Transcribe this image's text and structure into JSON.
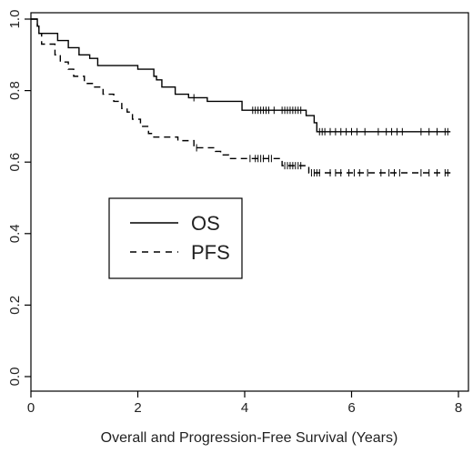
{
  "chart_data": {
    "type": "line",
    "xlabel": "Overall and Progression-Free Survival (Years)",
    "ylabel": "",
    "xlim": [
      0,
      8
    ],
    "ylim": [
      0,
      1
    ],
    "x_ticks": [
      "0",
      "2",
      "4",
      "6",
      "8"
    ],
    "x_tick_values": [
      0,
      2,
      4,
      6,
      8
    ],
    "y_ticks": [
      "0.0",
      "0.2",
      "0.4",
      "0.6",
      "0.8",
      "1.0"
    ],
    "y_tick_values": [
      0,
      0.2,
      0.4,
      0.6,
      0.8,
      1.0
    ],
    "grid": false,
    "legend_position": "middle-left",
    "series": [
      {
        "name": "OS",
        "line_style": "solid",
        "color": "#000000",
        "steps": [
          [
            0.0,
            1.0
          ],
          [
            0.12,
            0.98
          ],
          [
            0.15,
            0.96
          ],
          [
            0.5,
            0.94
          ],
          [
            0.7,
            0.92
          ],
          [
            0.9,
            0.9
          ],
          [
            1.1,
            0.89
          ],
          [
            1.25,
            0.87
          ],
          [
            2.0,
            0.86
          ],
          [
            2.3,
            0.84
          ],
          [
            2.35,
            0.83
          ],
          [
            2.45,
            0.81
          ],
          [
            2.7,
            0.79
          ],
          [
            2.95,
            0.78
          ],
          [
            3.3,
            0.77
          ],
          [
            3.95,
            0.745
          ],
          [
            5.15,
            0.73
          ],
          [
            5.3,
            0.71
          ],
          [
            5.35,
            0.685
          ],
          [
            7.85,
            0.685
          ]
        ],
        "censored": [
          3.05,
          4.15,
          4.2,
          4.25,
          4.3,
          4.35,
          4.4,
          4.45,
          4.55,
          4.7,
          4.75,
          4.8,
          4.85,
          4.9,
          4.95,
          5.0,
          5.05,
          5.4,
          5.45,
          5.5,
          5.6,
          5.7,
          5.8,
          5.9,
          6.0,
          6.1,
          6.25,
          6.5,
          6.65,
          6.75,
          6.85,
          6.95,
          7.3,
          7.45,
          7.6,
          7.75,
          7.8
        ]
      },
      {
        "name": "PFS",
        "line_style": "dashed",
        "color": "#000000",
        "steps": [
          [
            0.0,
            1.0
          ],
          [
            0.12,
            0.98
          ],
          [
            0.15,
            0.96
          ],
          [
            0.2,
            0.93
          ],
          [
            0.45,
            0.9
          ],
          [
            0.55,
            0.88
          ],
          [
            0.7,
            0.86
          ],
          [
            0.8,
            0.84
          ],
          [
            1.0,
            0.82
          ],
          [
            1.15,
            0.81
          ],
          [
            1.35,
            0.79
          ],
          [
            1.55,
            0.77
          ],
          [
            1.7,
            0.75
          ],
          [
            1.8,
            0.74
          ],
          [
            1.9,
            0.72
          ],
          [
            2.05,
            0.7
          ],
          [
            2.2,
            0.68
          ],
          [
            2.3,
            0.67
          ],
          [
            2.75,
            0.66
          ],
          [
            3.05,
            0.64
          ],
          [
            3.45,
            0.63
          ],
          [
            3.55,
            0.62
          ],
          [
            3.7,
            0.61
          ],
          [
            4.7,
            0.59
          ],
          [
            5.2,
            0.57
          ],
          [
            7.85,
            0.57
          ]
        ],
        "censored": [
          3.1,
          4.1,
          4.2,
          4.25,
          4.3,
          4.35,
          4.45,
          4.5,
          4.75,
          4.8,
          4.85,
          4.9,
          4.95,
          5.0,
          5.05,
          5.25,
          5.3,
          5.35,
          5.4,
          5.6,
          5.7,
          5.8,
          5.95,
          6.05,
          6.15,
          6.3,
          6.55,
          6.7,
          6.8,
          6.9,
          7.3,
          7.45,
          7.6,
          7.75,
          7.8
        ]
      }
    ]
  }
}
